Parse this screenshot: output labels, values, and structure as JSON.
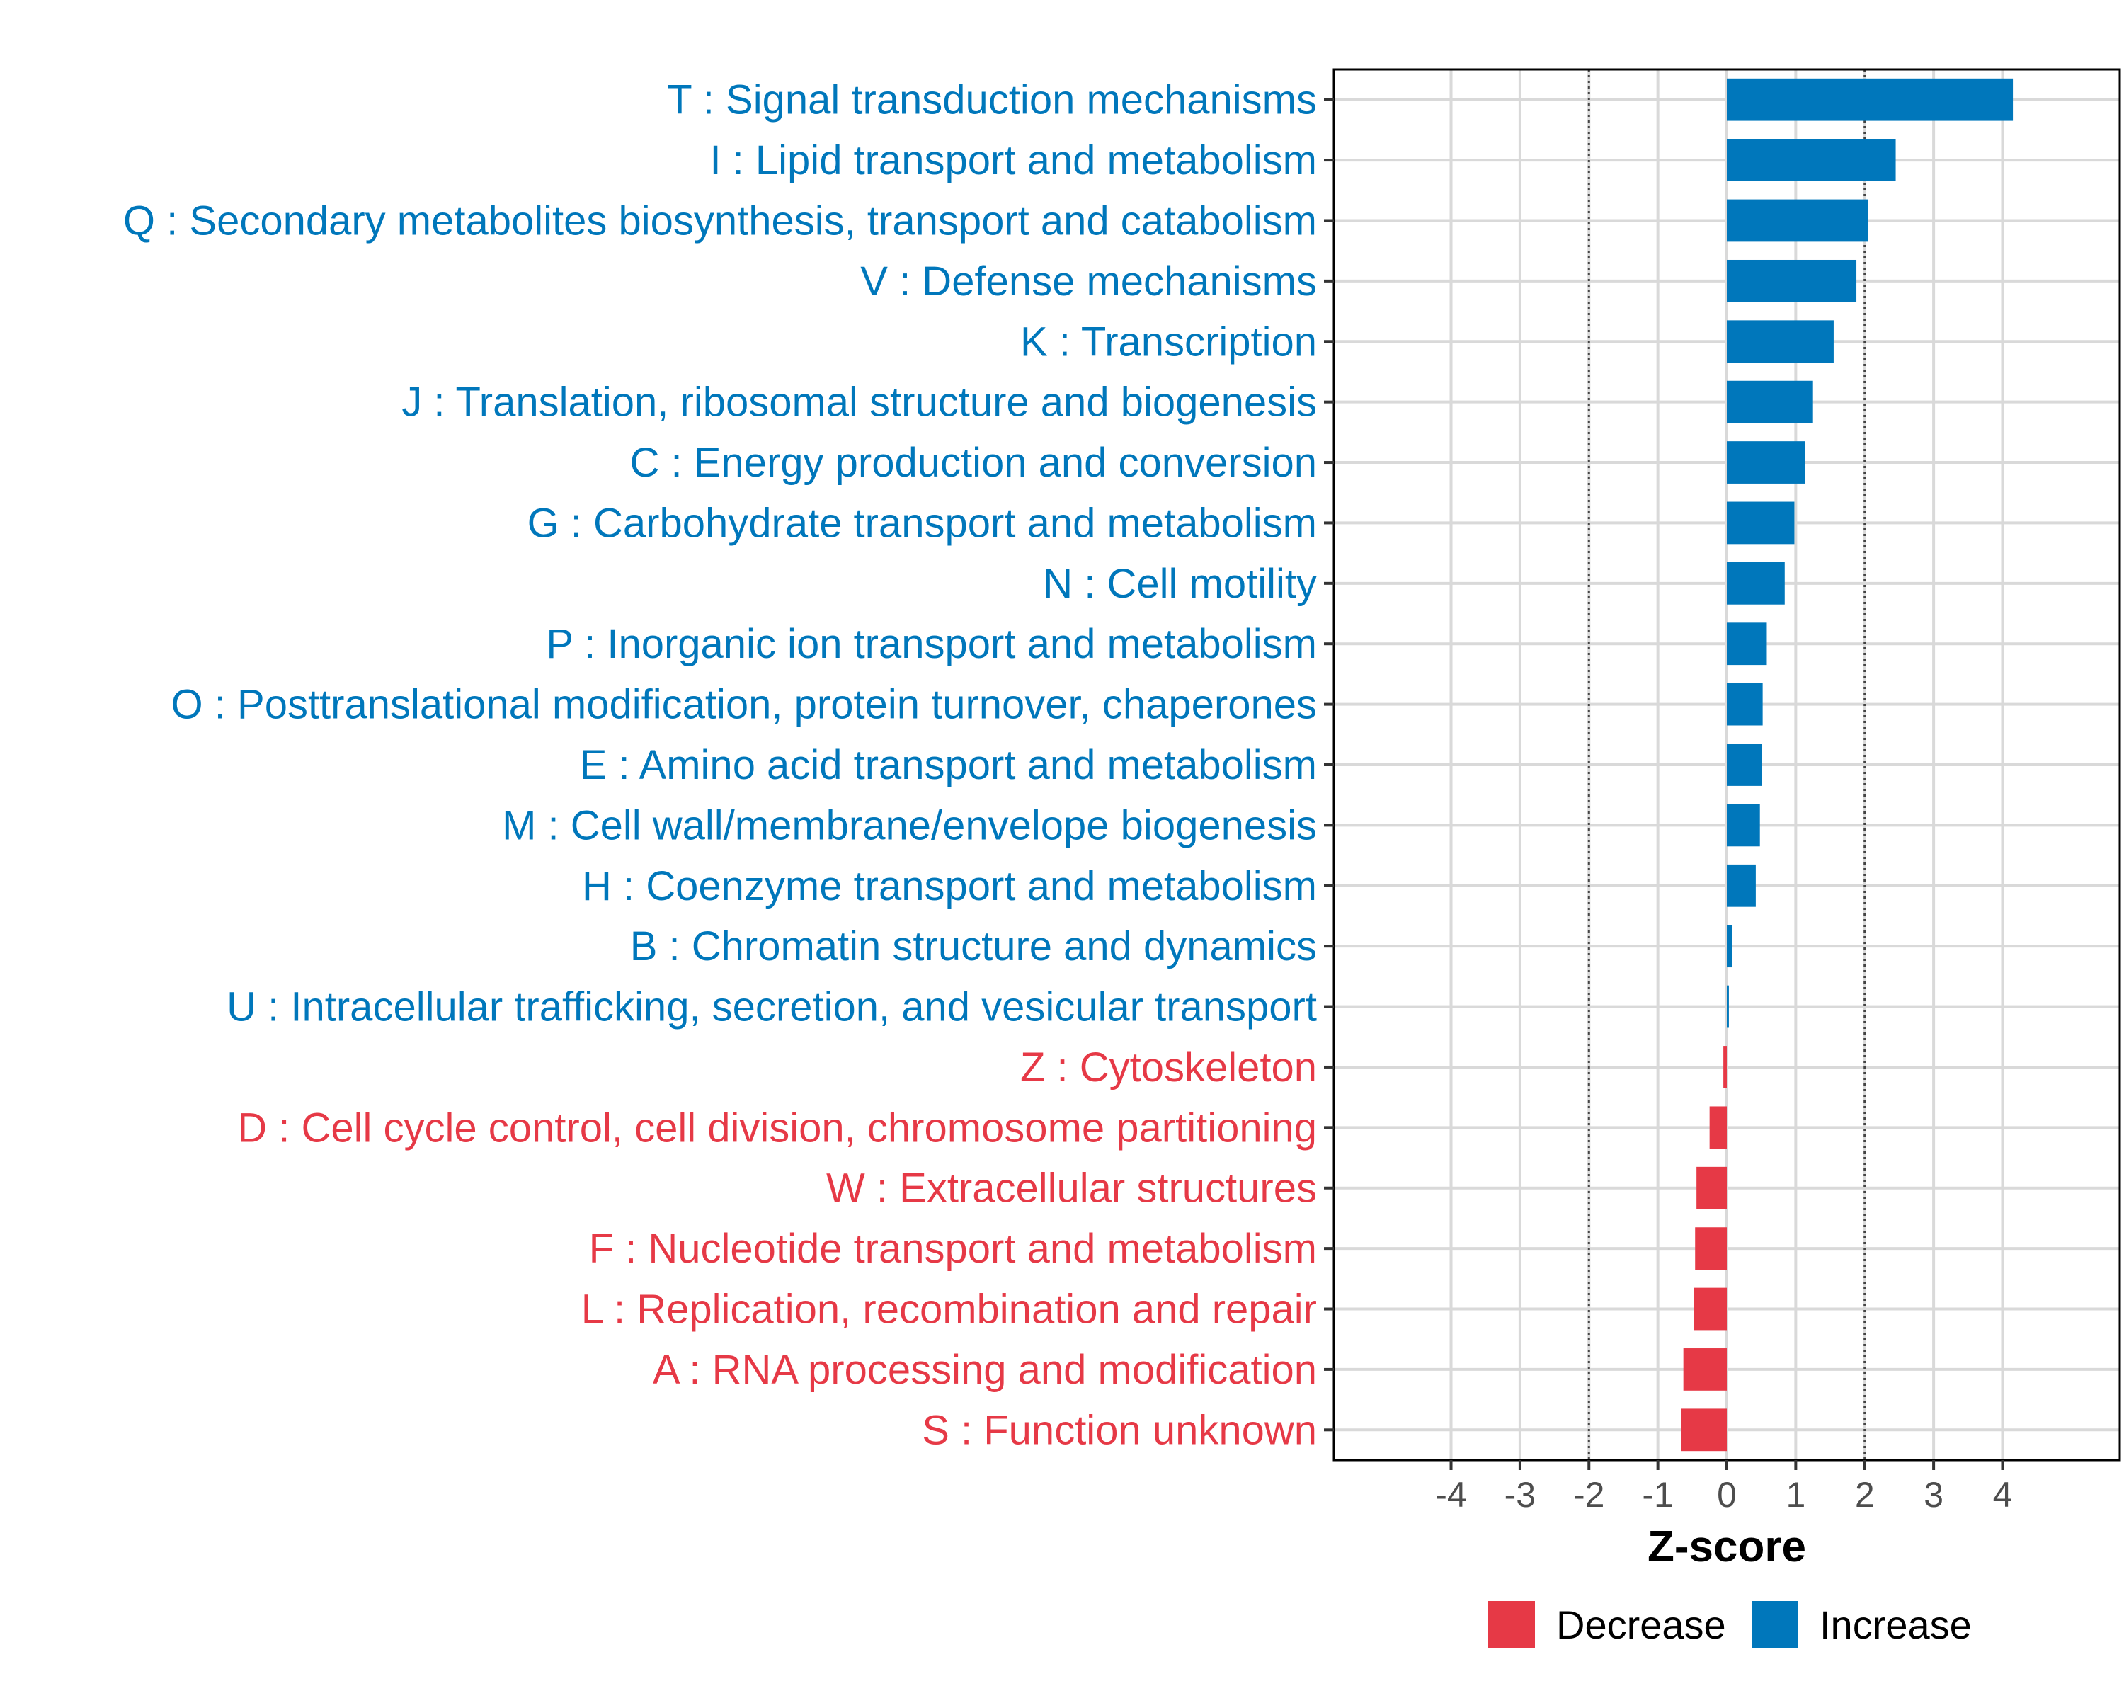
{
  "chart_data": {
    "type": "bar",
    "orientation": "horizontal",
    "title": "",
    "xlabel": "Z-score",
    "ylabel": "",
    "xlim": [
      -5.7,
      5.7
    ],
    "xticks": [
      "-4",
      "-3",
      "-2",
      "-1",
      "0",
      "1",
      "2",
      "3",
      "4"
    ],
    "reference_lines": [
      -2,
      2
    ],
    "grid": true,
    "colors": {
      "Increase": "#0077BB",
      "Decrease": "#E63946"
    },
    "legend": {
      "placement": "bottom",
      "entries": [
        {
          "label": "Decrease",
          "color": "#E63946"
        },
        {
          "label": "Increase",
          "color": "#0077BB"
        }
      ]
    },
    "categories": [
      {
        "label": "T : Signal transduction mechanisms",
        "value": 4.15,
        "group": "Increase"
      },
      {
        "label": "I : Lipid transport and metabolism",
        "value": 2.45,
        "group": "Increase"
      },
      {
        "label": "Q : Secondary metabolites biosynthesis, transport and catabolism",
        "value": 2.05,
        "group": "Increase"
      },
      {
        "label": "V : Defense mechanisms",
        "value": 1.88,
        "group": "Increase"
      },
      {
        "label": "K : Transcription",
        "value": 1.55,
        "group": "Increase"
      },
      {
        "label": "J : Translation, ribosomal structure and biogenesis",
        "value": 1.25,
        "group": "Increase"
      },
      {
        "label": "C : Energy production and conversion",
        "value": 1.13,
        "group": "Increase"
      },
      {
        "label": "G : Carbohydrate transport and metabolism",
        "value": 0.98,
        "group": "Increase"
      },
      {
        "label": "N : Cell motility",
        "value": 0.84,
        "group": "Increase"
      },
      {
        "label": "P : Inorganic ion transport and metabolism",
        "value": 0.58,
        "group": "Increase"
      },
      {
        "label": "O : Posttranslational modification, protein turnover, chaperones",
        "value": 0.52,
        "group": "Increase"
      },
      {
        "label": "E : Amino acid transport and metabolism",
        "value": 0.51,
        "group": "Increase"
      },
      {
        "label": "M : Cell wall/membrane/envelope biogenesis",
        "value": 0.48,
        "group": "Increase"
      },
      {
        "label": "H : Coenzyme transport and metabolism",
        "value": 0.42,
        "group": "Increase"
      },
      {
        "label": "B : Chromatin structure and dynamics",
        "value": 0.08,
        "group": "Increase"
      },
      {
        "label": "U : Intracellular trafficking, secretion, and vesicular transport",
        "value": 0.03,
        "group": "Increase"
      },
      {
        "label": "Z : Cytoskeleton",
        "value": -0.05,
        "group": "Decrease"
      },
      {
        "label": "D : Cell cycle control, cell division, chromosome partitioning",
        "value": -0.25,
        "group": "Decrease"
      },
      {
        "label": "W : Extracellular structures",
        "value": -0.44,
        "group": "Decrease"
      },
      {
        "label": "F : Nucleotide transport and metabolism",
        "value": -0.46,
        "group": "Decrease"
      },
      {
        "label": "L : Replication, recombination and repair",
        "value": -0.48,
        "group": "Decrease"
      },
      {
        "label": "A : RNA processing and modification",
        "value": -0.63,
        "group": "Decrease"
      },
      {
        "label": "S : Function unknown",
        "value": -0.66,
        "group": "Decrease"
      }
    ]
  }
}
